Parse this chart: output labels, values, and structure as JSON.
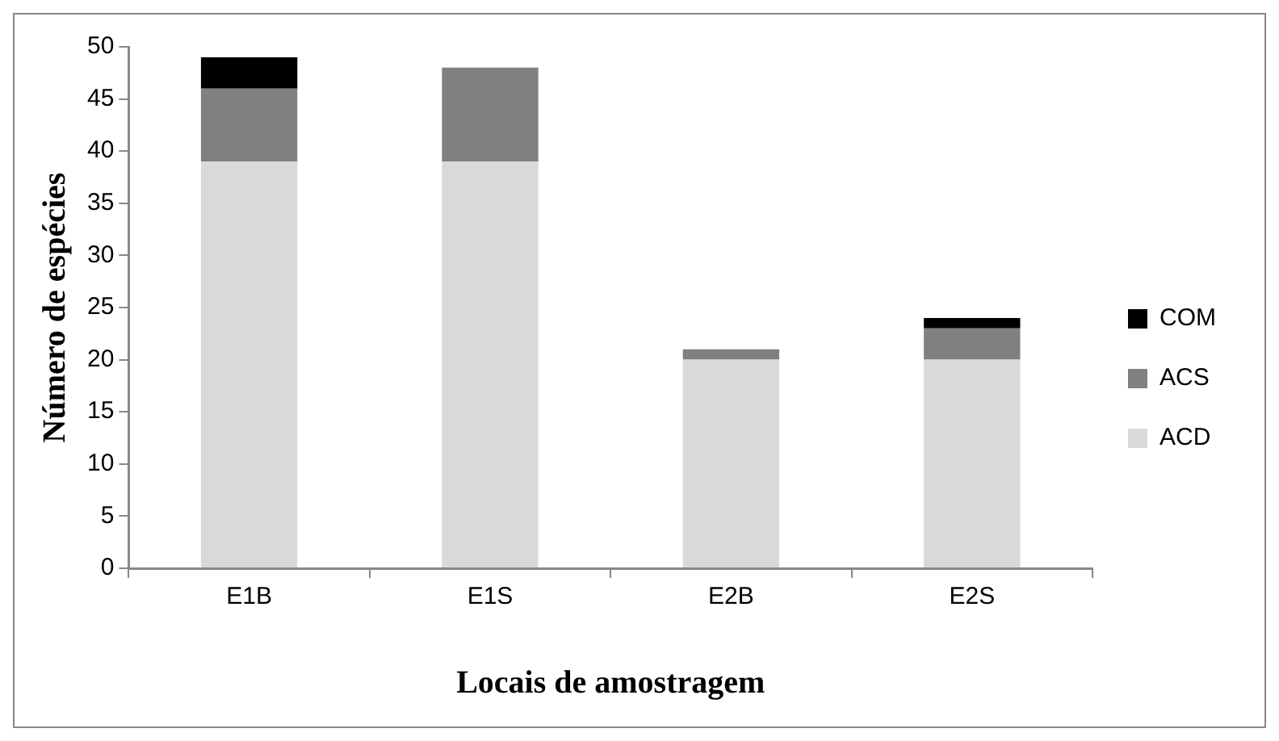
{
  "chart_data": {
    "type": "bar",
    "stacked": true,
    "xlabel": "Locais de amostragem",
    "ylabel": "Número de espécies",
    "categories": [
      "E1B",
      "E1S",
      "E2B",
      "E2S"
    ],
    "series": [
      {
        "name": "ACD",
        "color": "#d9d9d9",
        "values": [
          39,
          39,
          20,
          20
        ]
      },
      {
        "name": "ACS",
        "color": "#808080",
        "values": [
          7,
          9,
          1,
          3
        ]
      },
      {
        "name": "COM",
        "color": "#000000",
        "values": [
          3,
          0,
          0,
          1
        ]
      }
    ],
    "ylim": [
      0,
      50
    ],
    "yticks": [
      0,
      5,
      10,
      15,
      20,
      25,
      30,
      35,
      40,
      45,
      50
    ],
    "grid": false,
    "legend": "right"
  }
}
